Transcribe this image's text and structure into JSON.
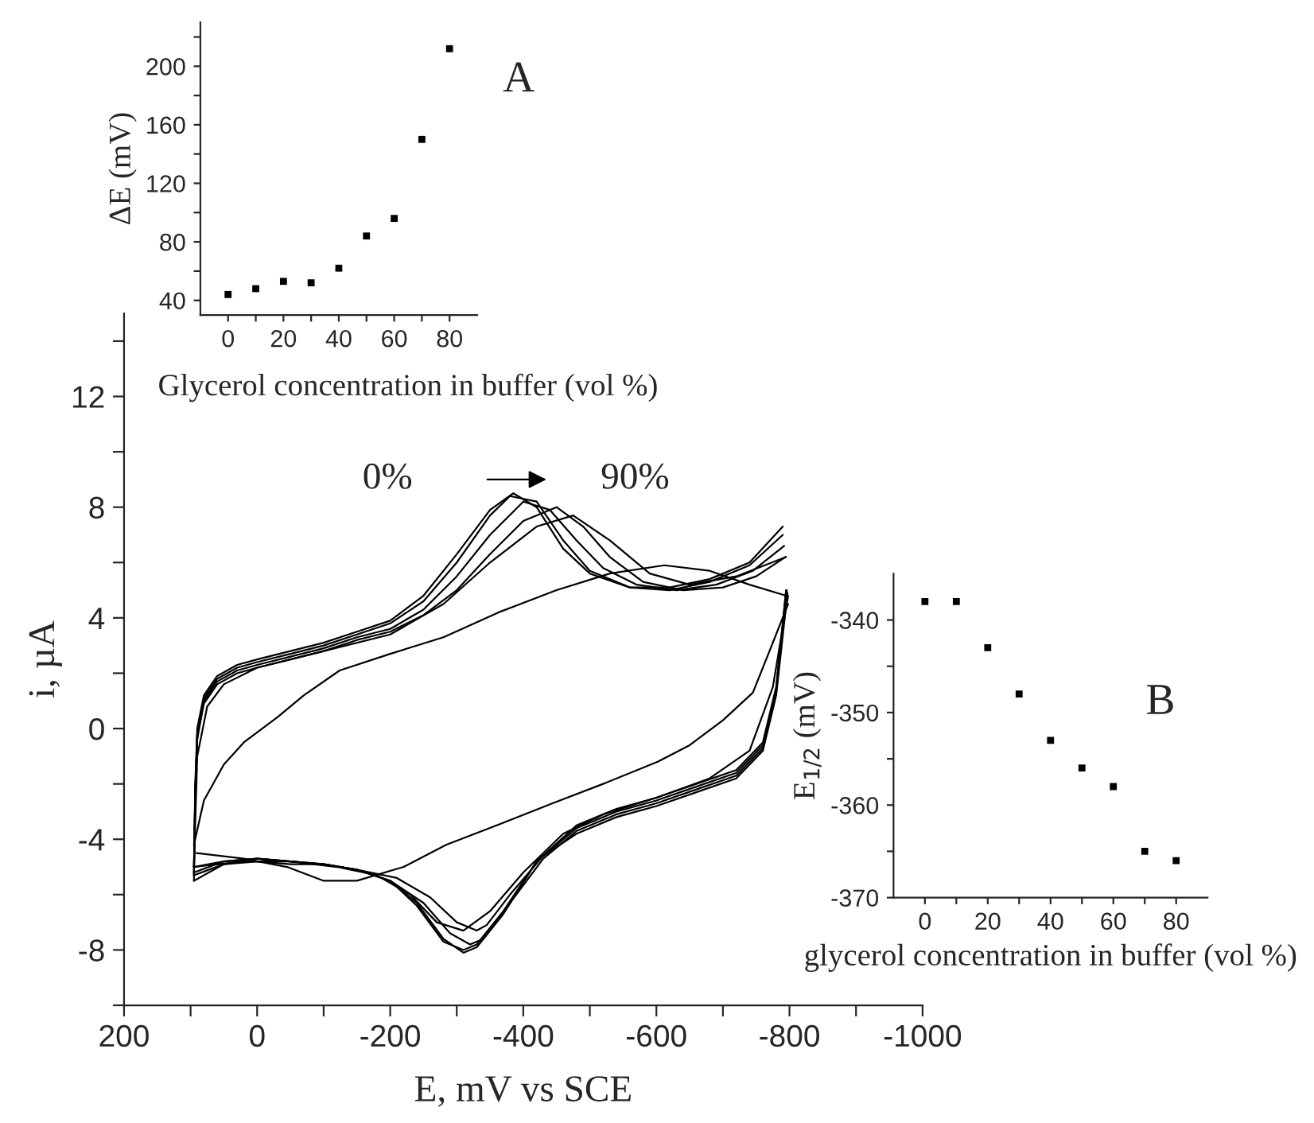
{
  "chart_data": [
    {
      "type": "line",
      "xlabel": "E, mV vs SCE",
      "ylabel": "i, µA",
      "xlim": [
        200,
        -1000
      ],
      "ylim": [
        -10,
        15
      ],
      "xticks": [
        200,
        {
          "value": 100,
          "label": null
        },
        0,
        {
          "value": -100,
          "label": null
        },
        -200,
        {
          "value": -300,
          "label": null
        },
        -400,
        {
          "value": -500,
          "label": null
        },
        -600,
        {
          "value": -700,
          "label": null
        },
        -800,
        {
          "value": -900,
          "label": null
        },
        -1000
      ],
      "yticks": [
        {
          "value": -10,
          "label": null
        },
        -8,
        {
          "value": -6,
          "label": null
        },
        -4,
        {
          "value": -2,
          "label": null
        },
        0,
        {
          "value": 2,
          "label": null
        },
        4,
        {
          "value": 6,
          "label": null
        },
        8,
        {
          "value": 10,
          "label": null
        },
        12,
        {
          "value": 14,
          "label": null
        }
      ],
      "marker": "none",
      "line_style": "solid",
      "annotations": [
        "0%",
        "90%"
      ],
      "series": [
        {
          "color": "#000000",
          "x": [
            95,
            93,
            90,
            80,
            60,
            30,
            0,
            -50,
            -100,
            -150,
            -200,
            -250,
            -300,
            -350,
            -385,
            -420,
            -460,
            -500,
            -560,
            -620,
            -680,
            -740,
            -790
          ],
          "values": [
            -5.0,
            -2.0,
            0.0,
            1.2,
            1.9,
            2.3,
            2.5,
            2.8,
            3.1,
            3.5,
            3.9,
            4.8,
            6.3,
            7.9,
            8.5,
            8.0,
            6.5,
            5.6,
            5.1,
            5.1,
            5.4,
            6.0,
            7.3
          ]
        },
        {
          "color": "#000000",
          "x": [
            -795,
            -780,
            -760,
            -720,
            -660,
            -600,
            -540,
            -480,
            -420,
            -370,
            -330,
            -310,
            -280,
            -240,
            -200,
            -150,
            -100,
            -50,
            0,
            50,
            95
          ],
          "values": [
            5.0,
            1.5,
            -0.5,
            -1.5,
            -2.0,
            -2.5,
            -2.9,
            -3.5,
            -4.8,
            -6.7,
            -7.9,
            -8.1,
            -7.6,
            -6.3,
            -5.5,
            -5.1,
            -4.9,
            -4.8,
            -4.7,
            -4.8,
            -5.0
          ]
        },
        {
          "color": "#000000",
          "x": [
            95,
            93,
            90,
            80,
            60,
            30,
            0,
            -50,
            -100,
            -150,
            -200,
            -250,
            -300,
            -350,
            -380,
            -420,
            -460,
            -500,
            -560,
            -620,
            -680,
            -740,
            -790
          ],
          "values": [
            -5.2,
            -2.2,
            -0.2,
            1.1,
            1.8,
            2.2,
            2.4,
            2.7,
            3.0,
            3.4,
            3.8,
            4.6,
            6.0,
            7.7,
            8.4,
            8.2,
            6.8,
            5.7,
            5.1,
            5.0,
            5.3,
            5.9,
            7.0
          ]
        },
        {
          "color": "#000000",
          "x": [
            -795,
            -780,
            -760,
            -720,
            -660,
            -600,
            -540,
            -480,
            -420,
            -370,
            -330,
            -310,
            -280,
            -240,
            -200,
            -150,
            -100,
            -50,
            0,
            50,
            95
          ],
          "values": [
            5.0,
            1.4,
            -0.6,
            -1.6,
            -2.1,
            -2.6,
            -3.0,
            -3.6,
            -4.8,
            -6.6,
            -7.8,
            -8.0,
            -7.7,
            -6.4,
            -5.5,
            -5.1,
            -4.9,
            -4.8,
            -4.7,
            -4.8,
            -5.2
          ]
        },
        {
          "color": "#000000",
          "x": [
            95,
            93,
            90,
            80,
            60,
            30,
            0,
            -50,
            -100,
            -150,
            -200,
            -250,
            -300,
            -350,
            -400,
            -440,
            -480,
            -520,
            -570,
            -630,
            -690,
            -745,
            -792
          ],
          "values": [
            -5.5,
            -2.4,
            -0.4,
            1.0,
            1.7,
            2.1,
            2.3,
            2.6,
            2.9,
            3.3,
            3.6,
            4.3,
            5.5,
            7.0,
            8.2,
            7.9,
            6.8,
            5.8,
            5.2,
            5.0,
            5.2,
            5.7,
            6.6
          ]
        },
        {
          "color": "#000000",
          "x": [
            -796,
            -780,
            -760,
            -720,
            -660,
            -600,
            -540,
            -480,
            -430,
            -380,
            -340,
            -320,
            -290,
            -250,
            -200,
            -150,
            -100,
            -50,
            0,
            50,
            95
          ],
          "values": [
            5.0,
            1.3,
            -0.7,
            -1.7,
            -2.2,
            -2.7,
            -3.1,
            -3.7,
            -4.7,
            -6.3,
            -7.6,
            -7.8,
            -7.4,
            -6.3,
            -5.5,
            -5.1,
            -4.9,
            -4.8,
            -4.7,
            -4.9,
            -5.5
          ]
        },
        {
          "color": "#000000",
          "x": [
            95,
            93,
            90,
            80,
            60,
            30,
            0,
            -50,
            -100,
            -150,
            -200,
            -250,
            -300,
            -350,
            -400,
            -450,
            -490,
            -530,
            -580,
            -640,
            -700,
            -750,
            -794
          ],
          "values": [
            -5.3,
            -2.3,
            -0.3,
            0.9,
            1.6,
            2.0,
            2.2,
            2.5,
            2.8,
            3.2,
            3.5,
            4.1,
            5.0,
            6.3,
            7.5,
            8.0,
            7.3,
            6.2,
            5.3,
            5.0,
            5.1,
            5.5,
            6.2
          ]
        },
        {
          "color": "#000000",
          "x": [
            -797,
            -780,
            -760,
            -720,
            -660,
            -600,
            -540,
            -480,
            -430,
            -380,
            -345,
            -330,
            -300,
            -260,
            -210,
            -150,
            -100,
            -50,
            0,
            50,
            95
          ],
          "values": [
            4.9,
            1.2,
            -0.8,
            -1.8,
            -2.3,
            -2.8,
            -3.2,
            -3.8,
            -4.6,
            -6.0,
            -7.1,
            -7.3,
            -7.0,
            -6.1,
            -5.4,
            -5.1,
            -4.9,
            -4.9,
            -4.8,
            -4.9,
            -5.3
          ]
        },
        {
          "color": "#000000",
          "x": [
            95,
            90,
            75,
            50,
            0,
            -100,
            -200,
            -280,
            -350,
            -420,
            -475,
            -530,
            -590,
            -650,
            -720,
            -795
          ],
          "values": [
            -5.0,
            -1.0,
            0.8,
            1.6,
            2.2,
            2.8,
            3.4,
            4.5,
            6.0,
            7.3,
            7.7,
            6.8,
            5.6,
            5.2,
            5.5,
            6.2
          ]
        },
        {
          "color": "#000000",
          "x": [
            -798,
            -775,
            -740,
            -680,
            -600,
            -520,
            -460,
            -400,
            -350,
            -310,
            -270,
            -230,
            -180,
            -120,
            -50,
            20,
            95
          ],
          "values": [
            4.8,
            1.5,
            -0.8,
            -1.8,
            -2.5,
            -3.1,
            -3.8,
            -5.2,
            -6.6,
            -7.3,
            -7.0,
            -6.0,
            -5.3,
            -5.0,
            -4.8,
            -4.8,
            -5.0
          ]
        },
        {
          "color": "#000000",
          "x": [
            95,
            80,
            50,
            20,
            -30,
            -70,
            -124,
            -200,
            -280,
            -363,
            -450,
            -530,
            -612,
            -680,
            -740,
            -795
          ],
          "values": [
            -4.2,
            -2.6,
            -1.3,
            -0.5,
            0.4,
            1.2,
            2.1,
            2.7,
            3.3,
            4.2,
            5.0,
            5.6,
            5.9,
            5.7,
            5.2,
            4.8
          ]
        },
        {
          "color": "#000000",
          "x": [
            -798,
            -770,
            -745,
            -700,
            -650,
            -602,
            -520,
            -444,
            -360,
            -284,
            -220,
            -150,
            -100,
            -45,
            20,
            91
          ],
          "values": [
            4.5,
            2.8,
            1.3,
            0.3,
            -0.6,
            -1.2,
            -2.0,
            -2.7,
            -3.5,
            -4.2,
            -5.0,
            -5.5,
            -5.5,
            -5.0,
            -4.7,
            -4.5
          ]
        }
      ]
    },
    {
      "type": "scatter",
      "xlabel": "Glycerol concentration in buffer (vol %)",
      "ylabel": "ΔE (mV)",
      "xlim": [
        -10,
        90
      ],
      "ylim": [
        30,
        230
      ],
      "xticks": [
        0,
        {
          "value": 10,
          "label": null
        },
        20,
        {
          "value": 30,
          "label": null
        },
        40,
        {
          "value": 50,
          "label": null
        },
        60,
        {
          "value": 70,
          "label": null
        },
        80
      ],
      "yticks": [
        40,
        {
          "value": 60,
          "label": null
        },
        80,
        {
          "value": 100,
          "label": null
        },
        120,
        {
          "value": 140,
          "label": null
        },
        160,
        {
          "value": 180,
          "label": null
        },
        200,
        {
          "value": 220,
          "label": null
        }
      ],
      "marker": "square",
      "annotations": [
        "A"
      ],
      "series": [
        {
          "color": "#000000",
          "x": [
            0,
            10,
            20,
            30,
            40,
            50,
            60,
            70,
            80
          ],
          "values": [
            44,
            48,
            53,
            52,
            62,
            84,
            96,
            150,
            212
          ]
        }
      ]
    },
    {
      "type": "scatter",
      "xlabel": "glycerol concentration in buffer (vol %)",
      "ylabel": "E$_{1/2}$ (mV)",
      "xlim": [
        -10,
        90
      ],
      "ylim": [
        -370,
        -335
      ],
      "xticks": [
        0,
        {
          "value": 10,
          "label": null
        },
        20,
        {
          "value": 30,
          "label": null
        },
        40,
        {
          "value": 50,
          "label": null
        },
        60,
        {
          "value": 70,
          "label": null
        },
        80
      ],
      "yticks": [
        -370,
        {
          "value": -365,
          "label": null
        },
        -360,
        {
          "value": -355,
          "label": null
        },
        -350,
        {
          "value": -345,
          "label": null
        },
        -340
      ],
      "marker": "square",
      "annotations": [
        "B"
      ],
      "series": [
        {
          "color": "#000000",
          "x": [
            0,
            10,
            20,
            30,
            40,
            50,
            60,
            70,
            80
          ],
          "values": [
            -338,
            -338,
            -343,
            -348,
            -353,
            -356,
            -358,
            -365,
            -366
          ]
        }
      ]
    }
  ]
}
